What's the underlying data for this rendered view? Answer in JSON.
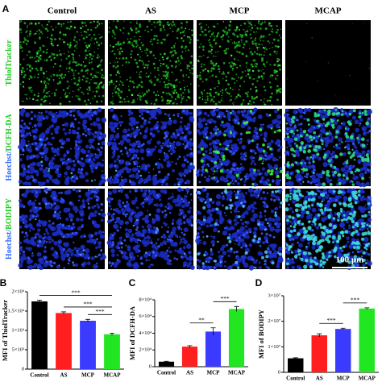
{
  "figure": {
    "panel_labels": [
      "A",
      "B",
      "C",
      "D"
    ],
    "columns": [
      "Control",
      "AS",
      "MCP",
      "MCAP"
    ],
    "rows": [
      [
        "ThiolTracker"
      ],
      [
        "Hoechst/",
        "DCFH-DA"
      ],
      [
        "Hoechst/",
        "BODIPY"
      ]
    ],
    "scale_bar": "100 μm"
  },
  "chart_data": [
    {
      "type": "bar",
      "y_label": "MFI of ThiolTracker",
      "categories": [
        "Control",
        "AS",
        "MCP",
        "MCAP"
      ],
      "values": [
        17500,
        14500,
        12500,
        9000
      ],
      "errors": [
        300,
        300,
        350,
        300
      ],
      "colors": [
        "#000000",
        "#ff1f1f",
        "#3b3bff",
        "#22e622"
      ],
      "ylim": [
        0,
        20000
      ],
      "yticks": [
        0,
        {
          "value": 5000,
          "label": "5×10³"
        },
        {
          "value": 10000,
          "label": "1×10⁴"
        },
        {
          "value": 15000,
          "label": "1.5×10⁴"
        },
        {
          "value": 20000,
          "label": "2×10⁴"
        }
      ],
      "annotations": [
        {
          "label": "***",
          "from": 0,
          "to": 3
        },
        {
          "label": "***",
          "from": 1,
          "to": 3
        },
        {
          "label": "***",
          "from": 2,
          "to": 3
        }
      ]
    },
    {
      "type": "bar",
      "y_label": "MFI of DCFH-DA",
      "categories": [
        "Control",
        "AS",
        "MCP",
        "MCAP"
      ],
      "values": [
        6000,
        24000,
        42000,
        69000
      ],
      "errors": [
        500,
        1200,
        4500,
        3000
      ],
      "colors": [
        "#000000",
        "#ff1f1f",
        "#3b3bff",
        "#22e622"
      ],
      "ylim": [
        0,
        80000
      ],
      "yticks": [
        0,
        {
          "value": 20000,
          "label": "2×10⁴"
        },
        {
          "value": 40000,
          "label": "4×10⁴"
        },
        {
          "value": 60000,
          "label": "6×10⁴"
        },
        {
          "value": 80000,
          "label": "8×10⁴"
        }
      ],
      "annotations": [
        {
          "label": "**",
          "from": 1,
          "to": 2
        },
        {
          "label": "***",
          "from": 2,
          "to": 3
        }
      ]
    },
    {
      "type": "bar",
      "y_label": "MFI of BODIPY",
      "categories": [
        "Control",
        "AS",
        "MCP",
        "MCAP"
      ],
      "values": [
        5500000,
        14500000,
        17000000,
        25000000
      ],
      "errors": [
        200000,
        600000,
        300000,
        300000
      ],
      "colors": [
        "#000000",
        "#ff1f1f",
        "#3b3bff",
        "#22e622"
      ],
      "ylim": [
        0,
        30000000
      ],
      "yticks": [
        0,
        {
          "value": 10000000,
          "label": "1×10⁷"
        },
        {
          "value": 20000000,
          "label": "2×10⁷"
        },
        {
          "value": 30000000,
          "label": "3×10⁷"
        }
      ],
      "annotations": [
        {
          "label": "***",
          "from": 1,
          "to": 2
        },
        {
          "label": "***",
          "from": 2,
          "to": 3
        }
      ]
    }
  ]
}
